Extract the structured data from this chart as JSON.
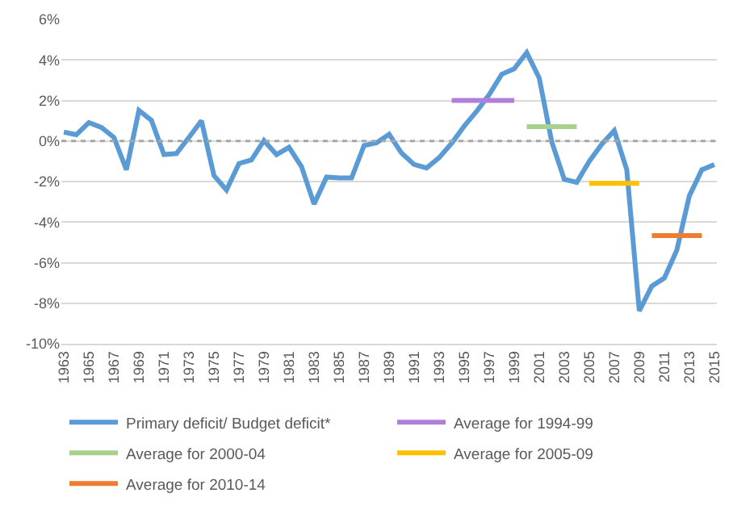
{
  "chart_data": {
    "type": "line",
    "categories": [
      "1963",
      null,
      "1965",
      null,
      "1967",
      null,
      "1969",
      null,
      "1971",
      null,
      "1973",
      null,
      "1975",
      null,
      "1977",
      null,
      "1979",
      null,
      "1981",
      null,
      "1983",
      null,
      "1985",
      null,
      "1987",
      null,
      "1989",
      null,
      "1991",
      null,
      "1993",
      null,
      "1995",
      null,
      "1997",
      null,
      "1999",
      null,
      "2001",
      null,
      "2003",
      null,
      "2005",
      null,
      "2007",
      null,
      "2009",
      null,
      "2011",
      null,
      "2013",
      null,
      "2015"
    ],
    "series": [
      {
        "name": "Primary deficit/ Budget deficit*",
        "color": "#5b9bd5",
        "values": [
          0.44,
          0.31,
          0.91,
          0.67,
          0.18,
          -1.42,
          1.51,
          1.02,
          -0.67,
          -0.62,
          0.18,
          1.0,
          -1.71,
          -2.42,
          -1.11,
          -0.93,
          0.02,
          -0.67,
          -0.31,
          -1.27,
          -3.11,
          -1.78,
          -1.82,
          -1.82,
          -0.22,
          -0.09,
          0.33,
          -0.6,
          -1.16,
          -1.33,
          -0.82,
          -0.11,
          0.73,
          1.47,
          2.29,
          3.29,
          3.56,
          4.36,
          3.11,
          -0.04,
          -1.89,
          -2.04,
          -1.0,
          -0.16,
          0.51,
          -1.42,
          -8.38,
          -7.16,
          -6.76,
          -5.38,
          -2.71,
          -1.42,
          -1.16
        ]
      },
      {
        "name": "Average for 1994-99",
        "color": "#b07fd9",
        "values": [
          null,
          null,
          null,
          null,
          null,
          null,
          null,
          null,
          null,
          null,
          null,
          null,
          null,
          null,
          null,
          null,
          null,
          null,
          null,
          null,
          null,
          null,
          null,
          null,
          null,
          null,
          null,
          null,
          null,
          null,
          null,
          2.0,
          2.0,
          2.0,
          2.0,
          2.0,
          2.0,
          null,
          null,
          null,
          null,
          null,
          null,
          null,
          null,
          null,
          null,
          null,
          null,
          null,
          null,
          null,
          null
        ]
      },
      {
        "name": "Average for 2000-04",
        "color": "#a9d18e",
        "values": [
          null,
          null,
          null,
          null,
          null,
          null,
          null,
          null,
          null,
          null,
          null,
          null,
          null,
          null,
          null,
          null,
          null,
          null,
          null,
          null,
          null,
          null,
          null,
          null,
          null,
          null,
          null,
          null,
          null,
          null,
          null,
          null,
          null,
          null,
          null,
          null,
          null,
          0.71,
          0.71,
          0.71,
          0.71,
          0.71,
          null,
          null,
          null,
          null,
          null,
          null,
          null,
          null,
          null,
          null,
          null
        ]
      },
      {
        "name": "Average for 2005-09",
        "color": "#ffc000",
        "values": [
          null,
          null,
          null,
          null,
          null,
          null,
          null,
          null,
          null,
          null,
          null,
          null,
          null,
          null,
          null,
          null,
          null,
          null,
          null,
          null,
          null,
          null,
          null,
          null,
          null,
          null,
          null,
          null,
          null,
          null,
          null,
          null,
          null,
          null,
          null,
          null,
          null,
          null,
          null,
          null,
          null,
          null,
          -2.09,
          -2.09,
          -2.09,
          -2.09,
          -2.09,
          null,
          null,
          null,
          null,
          null,
          null
        ]
      },
      {
        "name": "Average for 2010-14",
        "color": "#ed7d31",
        "values": [
          null,
          null,
          null,
          null,
          null,
          null,
          null,
          null,
          null,
          null,
          null,
          null,
          null,
          null,
          null,
          null,
          null,
          null,
          null,
          null,
          null,
          null,
          null,
          null,
          null,
          null,
          null,
          null,
          null,
          null,
          null,
          null,
          null,
          null,
          null,
          null,
          null,
          null,
          null,
          null,
          null,
          null,
          null,
          null,
          null,
          null,
          null,
          -4.67,
          -4.67,
          -4.67,
          -4.67,
          -4.67,
          null
        ]
      }
    ],
    "ylim": [
      -10,
      6
    ],
    "yticks": [
      {
        "value": -10,
        "label": "-10%"
      },
      {
        "value": -8,
        "label": "-8%"
      },
      {
        "value": -6,
        "label": "-6%"
      },
      {
        "value": -4,
        "label": "-4%"
      },
      {
        "value": -2,
        "label": "-2%"
      },
      {
        "value": 0,
        "label": "0%"
      },
      {
        "value": 2,
        "label": "2%"
      },
      {
        "value": 4,
        "label": "4%"
      },
      {
        "value": 6,
        "label": "6%"
      }
    ],
    "ref_lines": [
      {
        "axis": "y",
        "value": 0,
        "color": "#a6a6a6",
        "line_style": "dotted"
      }
    ],
    "grid": "y",
    "legend": "bottom",
    "marker": "none",
    "line_style": "solid"
  }
}
